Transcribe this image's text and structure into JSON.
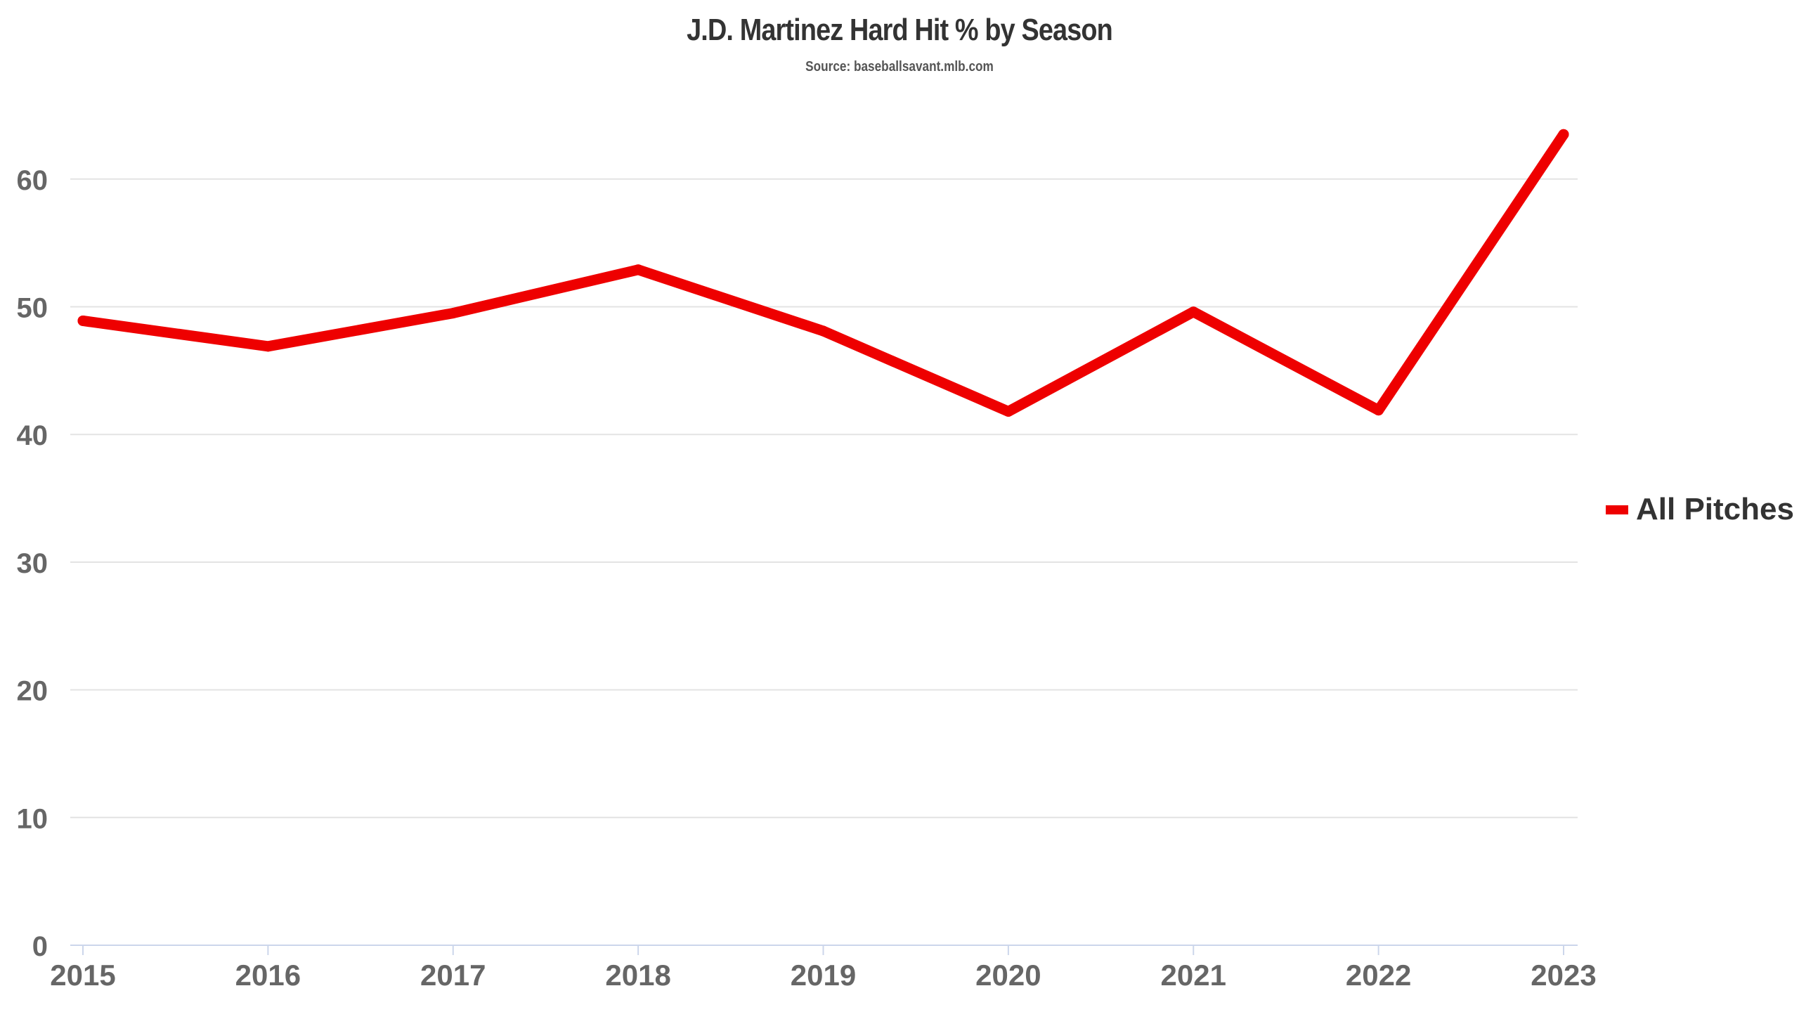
{
  "chart_data": {
    "type": "line",
    "title": "J.D. Martinez Hard Hit % by Season",
    "subtitle": "Source: baseballsavant.mlb.com",
    "xlabel": "",
    "ylabel": "",
    "x": [
      "2015",
      "2016",
      "2017",
      "2018",
      "2019",
      "2020",
      "2021",
      "2022",
      "2023"
    ],
    "series": [
      {
        "name": "All Pitches",
        "color": "#ee0000",
        "values": [
          48.9,
          46.9,
          49.5,
          52.9,
          48.1,
          41.8,
          49.6,
          41.9,
          63.5
        ]
      }
    ],
    "ylim": [
      0,
      66
    ],
    "yticks": [
      0,
      10,
      20,
      30,
      40,
      50,
      60
    ],
    "grid": true,
    "legend_position": "right"
  }
}
